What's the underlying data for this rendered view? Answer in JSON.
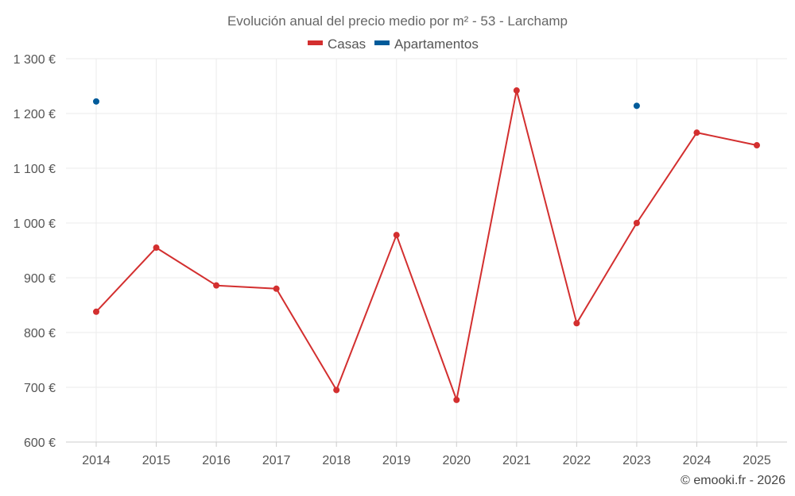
{
  "chart_data": {
    "type": "line",
    "title": "Evolución anual del precio medio por m² - 53 - Larchamp",
    "categories": [
      "2014",
      "2015",
      "2016",
      "2017",
      "2018",
      "2019",
      "2020",
      "2021",
      "2022",
      "2023",
      "2024",
      "2025"
    ],
    "series": [
      {
        "name": "Casas",
        "color": "#d32f2f",
        "mode": "line+markers",
        "values": [
          838,
          955,
          886,
          880,
          695,
          978,
          677,
          1242,
          817,
          1000,
          1165,
          1142
        ]
      },
      {
        "name": "Apartamentos",
        "color": "#005b9a",
        "mode": "markers",
        "values": [
          1222,
          null,
          null,
          null,
          null,
          null,
          null,
          null,
          null,
          1214,
          null,
          null
        ]
      }
    ],
    "ylim": [
      600,
      1300
    ],
    "yticks": [
      600,
      700,
      800,
      900,
      1000,
      1100,
      1200,
      1300
    ],
    "ytick_labels": [
      "600 €",
      "700 €",
      "800 €",
      "900 €",
      "1 000 €",
      "1 100 €",
      "1 200 €",
      "1 300 €"
    ],
    "grid": true,
    "legend_position": "top-center",
    "xlabel": "",
    "ylabel": ""
  },
  "credit": "© emooki.fr - 2026"
}
